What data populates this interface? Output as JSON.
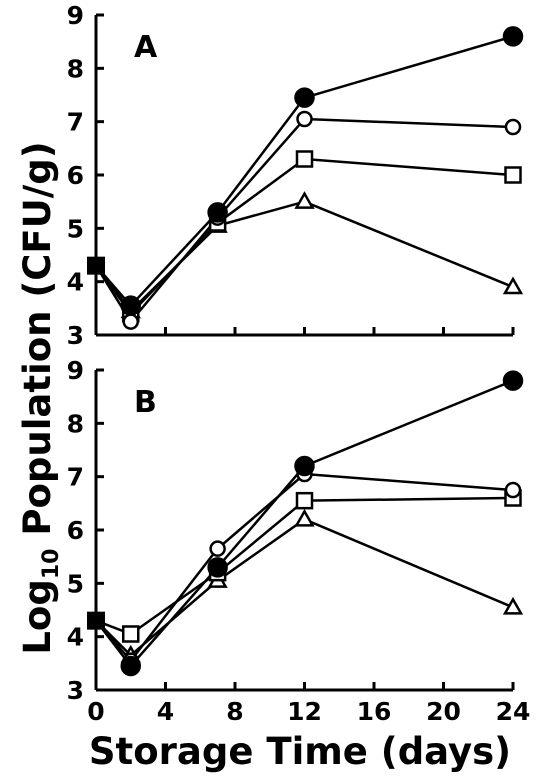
{
  "chart_data": [
    {
      "type": "line",
      "panel": "A",
      "x": [
        0,
        2,
        7,
        12,
        24
      ],
      "ylim": [
        3,
        9
      ],
      "yticks": [
        "3",
        "4",
        "5",
        "6",
        "7",
        "8",
        "9"
      ],
      "series": [
        {
          "marker": "filled-circle",
          "values": [
            4.3,
            3.55,
            5.3,
            7.45,
            8.6
          ]
        },
        {
          "marker": "open-circle",
          "values": [
            4.3,
            3.25,
            5.2,
            7.05,
            6.9
          ]
        },
        {
          "marker": "open-square",
          "values": [
            4.3,
            3.4,
            5.1,
            6.3,
            6.0
          ]
        },
        {
          "marker": "open-triangle",
          "values": [
            4.3,
            3.45,
            5.05,
            5.5,
            3.9
          ]
        }
      ]
    },
    {
      "type": "line",
      "panel": "B",
      "x": [
        0,
        2,
        7,
        12,
        24
      ],
      "ylim": [
        3,
        9
      ],
      "yticks": [
        "3",
        "4",
        "5",
        "6",
        "7",
        "8",
        "9"
      ],
      "series": [
        {
          "marker": "filled-circle",
          "values": [
            4.3,
            3.45,
            5.3,
            7.2,
            8.8
          ]
        },
        {
          "marker": "open-circle",
          "values": [
            4.3,
            3.55,
            5.65,
            7.05,
            6.75
          ]
        },
        {
          "marker": "open-square",
          "values": [
            4.3,
            4.05,
            5.2,
            6.55,
            6.6
          ]
        },
        {
          "marker": "open-triangle",
          "values": [
            4.3,
            3.65,
            5.05,
            6.2,
            4.55
          ]
        }
      ]
    }
  ],
  "xaxis": {
    "tick_labels": [
      "0",
      "4",
      "8",
      "12",
      "16",
      "20",
      "24"
    ],
    "tick_values": [
      0,
      4,
      8,
      12,
      16,
      20,
      24
    ],
    "label": "Storage Time (days)"
  },
  "yaxis": {
    "label_prefix": "Log",
    "label_subscript": "10",
    "label_suffix": " Population (CFU/g)"
  }
}
